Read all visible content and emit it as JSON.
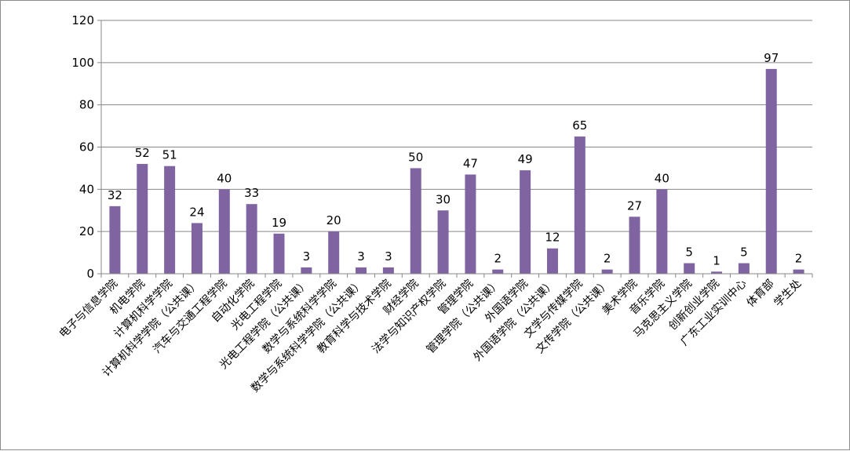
{
  "chart_data": {
    "type": "bar",
    "title": "",
    "xlabel": "",
    "ylabel": "",
    "ylim": [
      0,
      120
    ],
    "yticks": [
      0,
      20,
      40,
      60,
      80,
      100,
      120
    ],
    "grid": true,
    "legend": "none",
    "bar_color": "#8064a2",
    "categories": [
      "电子与信息学院",
      "机电学院",
      "计算机科学学院",
      "计算机科学学院（公共课）",
      "汽车与交通工程学院",
      "自动化学院",
      "光电工程学院",
      "光电工程学院（公共课）",
      "数学与系统科学学院",
      "数学与系统科学学院（公共课）",
      "教育科学与技术学院",
      "财经学院",
      "法学与知识产权学院",
      "管理学院",
      "管理学院（公共课）",
      "外国语学院",
      "外国语学院（公共课）",
      "文学与传媒学院",
      "文传学院（公共课）",
      "美术学院",
      "音乐学院",
      "马克思主义学院",
      "创新创业学院",
      "广东工业实训中心",
      "体育部",
      "学生处"
    ],
    "values": [
      32,
      52,
      51,
      24,
      40,
      33,
      19,
      3,
      20,
      3,
      3,
      50,
      30,
      47,
      2,
      49,
      12,
      65,
      2,
      27,
      40,
      5,
      1,
      5,
      97,
      2
    ]
  }
}
